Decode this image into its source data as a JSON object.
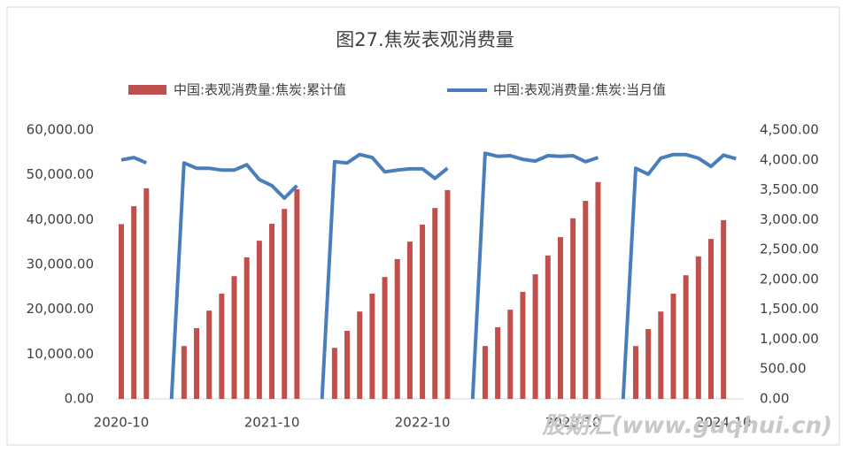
{
  "chart_data": {
    "type": "bar",
    "title": "图27.焦炭表观消费量",
    "watermark": "股期汇(www.guqhui.cn)",
    "categories": [
      "2020-10",
      null,
      null,
      null,
      null,
      null,
      null,
      null,
      null,
      null,
      null,
      null,
      "2021-10",
      null,
      null,
      null,
      null,
      null,
      null,
      null,
      null,
      null,
      null,
      null,
      "2022-10",
      null,
      null,
      null,
      null,
      null,
      null,
      null,
      null,
      null,
      null,
      null,
      "2023-10",
      null,
      null,
      null,
      null,
      null,
      null,
      null,
      null,
      null,
      null,
      null,
      "2024-10",
      null
    ],
    "series": [
      {
        "name": "中国:表观消费量:焦炭:累计值",
        "type": "bar",
        "color": "#c0504d",
        "values": [
          39000,
          43000,
          47000,
          null,
          null,
          11800,
          15800,
          19700,
          23500,
          27400,
          31600,
          35300,
          39100,
          42400,
          46800,
          null,
          null,
          11400,
          15200,
          19500,
          23500,
          27200,
          31200,
          35100,
          38900,
          42600,
          46600,
          null,
          null,
          11800,
          16000,
          19900,
          23900,
          27800,
          32000,
          36100,
          40300,
          44200,
          48400,
          null,
          null,
          11800,
          15600,
          19500,
          23500,
          27600,
          31800,
          35700,
          39900,
          null
        ]
      },
      {
        "name": "中国:表观消费量:焦炭:当月值",
        "type": "line",
        "axis": "y2",
        "color": "#4a7ebb",
        "values": [
          4000,
          4040,
          3950,
          null,
          0,
          3950,
          3860,
          3860,
          3830,
          3830,
          3920,
          3670,
          3570,
          3360,
          3570,
          null,
          0,
          3970,
          3950,
          4090,
          4040,
          3800,
          3830,
          3850,
          3850,
          3690,
          3860,
          null,
          0,
          4110,
          4060,
          4070,
          4010,
          3980,
          4070,
          4060,
          4070,
          3970,
          4040,
          null,
          0,
          3860,
          3760,
          4030,
          4090,
          4090,
          4030,
          3890,
          4080,
          4020
        ]
      }
    ],
    "ylim": [
      0,
      60000
    ],
    "yticks": [
      {
        "value": 0,
        "label": "0.00"
      },
      {
        "value": 10000,
        "label": "10,000.00"
      },
      {
        "value": 20000,
        "label": "20,000.00"
      },
      {
        "value": 30000,
        "label": "30,000.00"
      },
      {
        "value": 40000,
        "label": "40,000.00"
      },
      {
        "value": 50000,
        "label": "50,000.00"
      },
      {
        "value": 60000,
        "label": "60,000.00"
      }
    ],
    "y2lim": [
      0,
      4500
    ],
    "y2ticks": [
      {
        "value": 0,
        "label": "0.00"
      },
      {
        "value": 500,
        "label": "500.00"
      },
      {
        "value": 1000,
        "label": "1,000.00"
      },
      {
        "value": 1500,
        "label": "1,500.00"
      },
      {
        "value": 2000,
        "label": "2,000.00"
      },
      {
        "value": 2500,
        "label": "2,500.00"
      },
      {
        "value": 3000,
        "label": "3,000.00"
      },
      {
        "value": 3500,
        "label": "3,500.00"
      },
      {
        "value": 4000,
        "label": "4,000.00"
      },
      {
        "value": 4500,
        "label": "4,500.00"
      }
    ],
    "grid": false
  }
}
